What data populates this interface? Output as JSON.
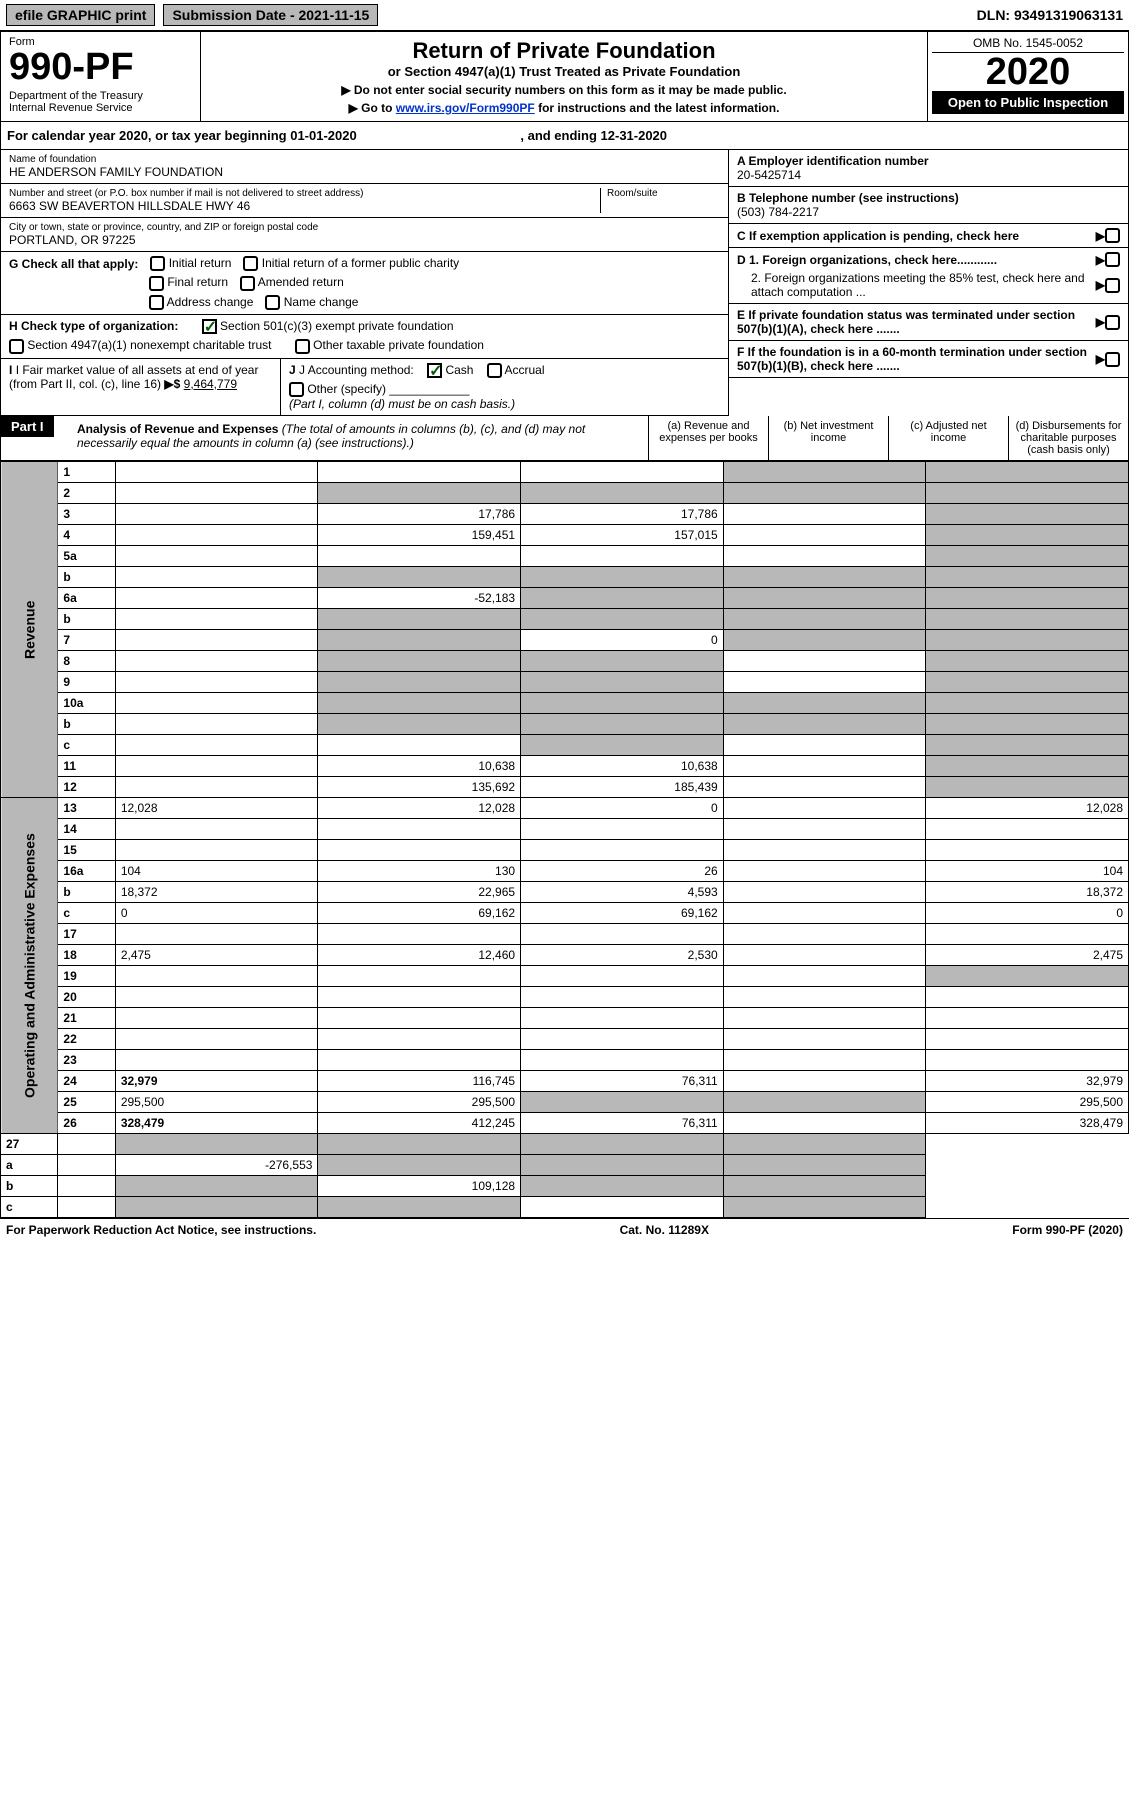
{
  "topbar": {
    "efile": "efile GRAPHIC print",
    "subdate": "Submission Date - 2021-11-15",
    "dln": "DLN: 93491319063131"
  },
  "header": {
    "form_label": "Form",
    "form_num": "990-PF",
    "dept": "Department of the Treasury\nInternal Revenue Service",
    "title": "Return of Private Foundation",
    "subtitle": "or Section 4947(a)(1) Trust Treated as Private Foundation",
    "note1": "▶ Do not enter social security numbers on this form as it may be made public.",
    "note2_pre": "▶ Go to ",
    "note2_link": "www.irs.gov/Form990PF",
    "note2_post": " for instructions and the latest information.",
    "omb": "OMB No. 1545-0052",
    "year": "2020",
    "open": "Open to Public Inspection"
  },
  "calyear": {
    "text": "For calendar year 2020, or tax year beginning 01-01-2020",
    "ending": ", and ending 12-31-2020"
  },
  "info": {
    "name_label": "Name of foundation",
    "name": "HE ANDERSON FAMILY FOUNDATION",
    "addr_label": "Number and street (or P.O. box number if mail is not delivered to street address)",
    "addr": "6663 SW BEAVERTON HILLSDALE HWY 46",
    "room_label": "Room/suite",
    "city_label": "City or town, state or province, country, and ZIP or foreign postal code",
    "city": "PORTLAND, OR  97225",
    "a_label": "A Employer identification number",
    "a_val": "20-5425714",
    "b_label": "B Telephone number (see instructions)",
    "b_val": "(503) 784-2217",
    "c_label": "C If exemption application is pending, check here",
    "d1_label": "D 1. Foreign organizations, check here............",
    "d2_label": "2. Foreign organizations meeting the 85% test, check here and attach computation ...",
    "e_label": "E  If private foundation status was terminated under section 507(b)(1)(A), check here .......",
    "f_label": "F  If the foundation is in a 60-month termination under section 507(b)(1)(B), check here .......",
    "g_label": "G Check all that apply:",
    "g_opts": [
      "Initial return",
      "Initial return of a former public charity",
      "Final return",
      "Amended return",
      "Address change",
      "Name change"
    ],
    "h_label": "H Check type of organization:",
    "h_opt1": "Section 501(c)(3) exempt private foundation",
    "h_opt2": "Section 4947(a)(1) nonexempt charitable trust",
    "h_opt3": "Other taxable private foundation",
    "i_label": "I Fair market value of all assets at end of year (from Part II, col. (c), line 16)",
    "i_val": "9,464,779",
    "j_label": "J Accounting method:",
    "j_opts": [
      "Cash",
      "Accrual"
    ],
    "j_other": "Other (specify)",
    "j_note": "(Part I, column (d) must be on cash basis.)"
  },
  "part1": {
    "label": "Part I",
    "title": "Analysis of Revenue and Expenses",
    "note": "(The total of amounts in columns (b), (c), and (d) may not necessarily equal the amounts in column (a) (see instructions).)",
    "col_a": "(a)   Revenue and expenses per books",
    "col_b": "(b)   Net investment income",
    "col_c": "(c)   Adjusted net income",
    "col_d": "(d)   Disbursements for charitable purposes (cash basis only)"
  },
  "sections": {
    "revenue": "Revenue",
    "expenses": "Operating and Administrative Expenses"
  },
  "rows": [
    {
      "n": "1",
      "d": "",
      "a": "",
      "b": "",
      "c": "",
      "shade_c": true,
      "shade_d": true
    },
    {
      "n": "2",
      "d": "",
      "a": "",
      "b": "",
      "c": "",
      "shade_a": true,
      "shade_b": true,
      "shade_c": true,
      "shade_d": true
    },
    {
      "n": "3",
      "d": "",
      "a": "17,786",
      "b": "17,786",
      "c": "",
      "shade_d": true
    },
    {
      "n": "4",
      "d": "",
      "a": "159,451",
      "b": "157,015",
      "c": "",
      "shade_d": true
    },
    {
      "n": "5a",
      "d": "",
      "a": "",
      "b": "",
      "c": "",
      "shade_d": true
    },
    {
      "n": "b",
      "d": "",
      "a": "",
      "b": "",
      "c": "",
      "shade_a": true,
      "shade_b": true,
      "shade_c": true,
      "shade_d": true
    },
    {
      "n": "6a",
      "d": "",
      "a": "-52,183",
      "b": "",
      "c": "",
      "shade_b": true,
      "shade_c": true,
      "shade_d": true
    },
    {
      "n": "b",
      "d": "",
      "a": "",
      "b": "",
      "c": "",
      "shade_a": true,
      "shade_b": true,
      "shade_c": true,
      "shade_d": true
    },
    {
      "n": "7",
      "d": "",
      "a": "",
      "b": "0",
      "c": "",
      "shade_a": true,
      "shade_c": true,
      "shade_d": true
    },
    {
      "n": "8",
      "d": "",
      "a": "",
      "b": "",
      "c": "",
      "shade_a": true,
      "shade_b": true,
      "shade_d": true
    },
    {
      "n": "9",
      "d": "",
      "a": "",
      "b": "",
      "c": "",
      "shade_a": true,
      "shade_b": true,
      "shade_d": true
    },
    {
      "n": "10a",
      "d": "",
      "a": "",
      "b": "",
      "c": "",
      "shade_a": true,
      "shade_b": true,
      "shade_c": true,
      "shade_d": true
    },
    {
      "n": "b",
      "d": "",
      "a": "",
      "b": "",
      "c": "",
      "shade_a": true,
      "shade_b": true,
      "shade_c": true,
      "shade_d": true
    },
    {
      "n": "c",
      "d": "",
      "a": "",
      "b": "",
      "c": "",
      "shade_b": true,
      "shade_d": true
    },
    {
      "n": "11",
      "d": "",
      "a": "10,638",
      "b": "10,638",
      "c": "",
      "shade_d": true
    },
    {
      "n": "12",
      "d": "",
      "a": "135,692",
      "b": "185,439",
      "c": "",
      "bold": true,
      "shade_d": true
    }
  ],
  "exp_rows": [
    {
      "n": "13",
      "d": "12,028",
      "a": "12,028",
      "b": "0",
      "c": ""
    },
    {
      "n": "14",
      "d": "",
      "a": "",
      "b": "",
      "c": ""
    },
    {
      "n": "15",
      "d": "",
      "a": "",
      "b": "",
      "c": ""
    },
    {
      "n": "16a",
      "d": "104",
      "a": "130",
      "b": "26",
      "c": ""
    },
    {
      "n": "b",
      "d": "18,372",
      "a": "22,965",
      "b": "4,593",
      "c": ""
    },
    {
      "n": "c",
      "d": "0",
      "a": "69,162",
      "b": "69,162",
      "c": ""
    },
    {
      "n": "17",
      "d": "",
      "a": "",
      "b": "",
      "c": ""
    },
    {
      "n": "18",
      "d": "2,475",
      "a": "12,460",
      "b": "2,530",
      "c": ""
    },
    {
      "n": "19",
      "d": "",
      "a": "",
      "b": "",
      "c": "",
      "shade_d": true
    },
    {
      "n": "20",
      "d": "",
      "a": "",
      "b": "",
      "c": ""
    },
    {
      "n": "21",
      "d": "",
      "a": "",
      "b": "",
      "c": ""
    },
    {
      "n": "22",
      "d": "",
      "a": "",
      "b": "",
      "c": ""
    },
    {
      "n": "23",
      "d": "",
      "a": "",
      "b": "",
      "c": ""
    },
    {
      "n": "24",
      "d": "32,979",
      "a": "116,745",
      "b": "76,311",
      "c": "",
      "bold": true
    },
    {
      "n": "25",
      "d": "295,500",
      "a": "295,500",
      "b": "",
      "c": "",
      "shade_b": true,
      "shade_c": true
    },
    {
      "n": "26",
      "d": "328,479",
      "a": "412,245",
      "b": "76,311",
      "c": "",
      "bold": true
    }
  ],
  "final_rows": [
    {
      "n": "27",
      "d": "",
      "a": "",
      "b": "",
      "c": "",
      "shade_a": true,
      "shade_b": true,
      "shade_c": true,
      "shade_d": true
    },
    {
      "n": "a",
      "d": "",
      "a": "-276,553",
      "b": "",
      "c": "",
      "bold": true,
      "shade_b": true,
      "shade_c": true,
      "shade_d": true
    },
    {
      "n": "b",
      "d": "",
      "a": "",
      "b": "109,128",
      "c": "",
      "bold": true,
      "shade_a": true,
      "shade_c": true,
      "shade_d": true
    },
    {
      "n": "c",
      "d": "",
      "a": "",
      "b": "",
      "c": "",
      "bold": true,
      "shade_a": true,
      "shade_b": true,
      "shade_d": true
    }
  ],
  "footer": {
    "left": "For Paperwork Reduction Act Notice, see instructions.",
    "mid": "Cat. No. 11289X",
    "right": "Form 990-PF (2020)"
  },
  "colors": {
    "shade": "#b8b8b8",
    "link": "#0033cc",
    "check": "#006000"
  }
}
